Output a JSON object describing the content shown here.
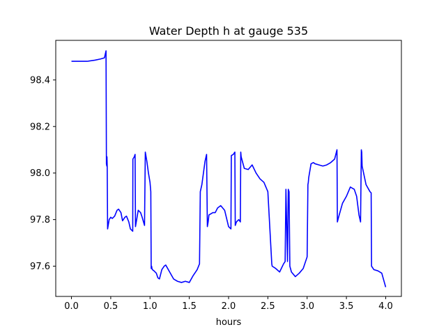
{
  "chart_data": {
    "type": "line",
    "title": "Water Depth h at gauge 535",
    "xlabel": "hours",
    "ylabel": "",
    "xlim": [
      -0.2,
      4.2
    ],
    "ylim": [
      97.47,
      98.57
    ],
    "x_ticks": [
      0.0,
      0.5,
      1.0,
      1.5,
      2.0,
      2.5,
      3.0,
      3.5,
      4.0
    ],
    "x_tick_labels": [
      "0.0",
      "0.5",
      "1.0",
      "1.5",
      "2.0",
      "2.5",
      "3.0",
      "3.5",
      "4.0"
    ],
    "y_ticks": [
      97.6,
      97.8,
      98.0,
      98.2,
      98.4
    ],
    "y_tick_labels": [
      "97.6",
      "97.8",
      "98.0",
      "98.2",
      "98.4"
    ],
    "grid": false,
    "series": [
      {
        "color": "#0000ff",
        "x": [
          0.0,
          0.1,
          0.2,
          0.3,
          0.37,
          0.42,
          0.44,
          0.445,
          0.45,
          0.452,
          0.455,
          0.46,
          0.48,
          0.5,
          0.52,
          0.55,
          0.58,
          0.6,
          0.63,
          0.65,
          0.68,
          0.7,
          0.73,
          0.75,
          0.78,
          0.782,
          0.8,
          0.81,
          0.815,
          0.82,
          0.85,
          0.88,
          0.9,
          0.93,
          0.94,
          0.96,
          0.98,
          1.0,
          1.01,
          1.015,
          1.02,
          1.025,
          1.03,
          1.05,
          1.08,
          1.1,
          1.12,
          1.15,
          1.18,
          1.2,
          1.25,
          1.3,
          1.35,
          1.4,
          1.45,
          1.5,
          1.55,
          1.6,
          1.63,
          1.64,
          1.66,
          1.7,
          1.72,
          1.73,
          1.74,
          1.75,
          1.8,
          1.83,
          1.86,
          1.9,
          1.95,
          2.0,
          2.03,
          2.035,
          2.06,
          2.07,
          2.08,
          2.085,
          2.1,
          2.13,
          2.15,
          2.155,
          2.16,
          2.2,
          2.25,
          2.3,
          2.35,
          2.4,
          2.45,
          2.5,
          2.55,
          2.555,
          2.6,
          2.65,
          2.7,
          2.72,
          2.73,
          2.75,
          2.76,
          2.77,
          2.78,
          2.8,
          2.85,
          2.9,
          2.95,
          3.0,
          3.01,
          3.015,
          3.02,
          3.05,
          3.08,
          3.1,
          3.15,
          3.2,
          3.25,
          3.3,
          3.35,
          3.38,
          3.385,
          3.4,
          3.45,
          3.5,
          3.55,
          3.6,
          3.63,
          3.66,
          3.68,
          3.69,
          3.695,
          3.7,
          3.75,
          3.8,
          3.815,
          3.82,
          3.85,
          3.9,
          3.95,
          4.0
        ],
        "y": [
          98.48,
          98.48,
          98.48,
          98.485,
          98.49,
          98.495,
          98.525,
          98.04,
          98.03,
          98.07,
          98.03,
          97.76,
          97.8,
          97.81,
          97.805,
          97.815,
          97.84,
          97.845,
          97.83,
          97.795,
          97.81,
          97.815,
          97.79,
          97.76,
          97.75,
          98.06,
          98.07,
          98.08,
          97.77,
          97.78,
          97.84,
          97.83,
          97.81,
          97.775,
          98.09,
          98.05,
          98.0,
          97.96,
          97.92,
          97.59,
          97.6,
          97.59,
          97.585,
          97.58,
          97.57,
          97.55,
          97.545,
          97.585,
          97.6,
          97.605,
          97.575,
          97.545,
          97.535,
          97.53,
          97.535,
          97.53,
          97.56,
          97.585,
          97.61,
          97.92,
          97.95,
          98.05,
          98.08,
          97.77,
          97.79,
          97.82,
          97.83,
          97.83,
          97.85,
          97.86,
          97.84,
          97.77,
          97.76,
          98.075,
          98.08,
          98.085,
          98.09,
          97.775,
          97.79,
          97.8,
          97.79,
          98.09,
          98.07,
          98.02,
          98.015,
          98.035,
          98.0,
          97.975,
          97.96,
          97.92,
          97.61,
          97.6,
          97.59,
          97.575,
          97.61,
          97.62,
          97.93,
          97.62,
          97.93,
          97.92,
          97.6,
          97.575,
          97.555,
          97.57,
          97.59,
          97.64,
          97.95,
          97.96,
          97.98,
          98.04,
          98.045,
          98.04,
          98.035,
          98.03,
          98.035,
          98.045,
          98.06,
          98.1,
          97.79,
          97.81,
          97.87,
          97.9,
          97.94,
          97.93,
          97.9,
          97.82,
          97.79,
          98.1,
          98.09,
          98.03,
          97.95,
          97.92,
          97.915,
          97.6,
          97.585,
          97.58,
          97.57,
          97.51
        ]
      }
    ]
  }
}
